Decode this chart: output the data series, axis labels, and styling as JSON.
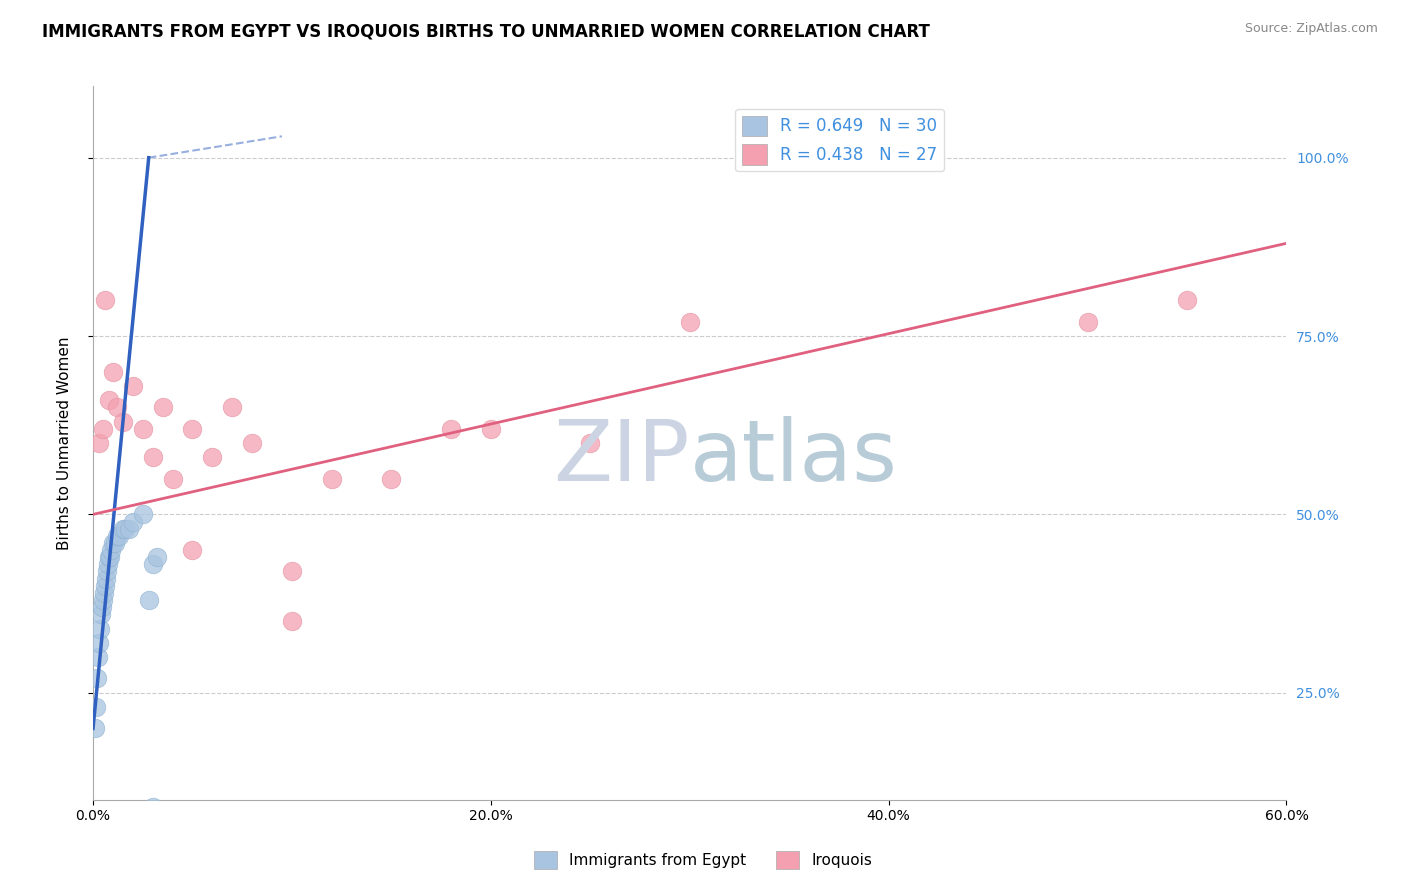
{
  "title": "IMMIGRANTS FROM EGYPT VS IROQUOIS BIRTHS TO UNMARRIED WOMEN CORRELATION CHART",
  "source": "Source: ZipAtlas.com",
  "xlabel_ticks": [
    "0.0%",
    "20.0%",
    "40.0%",
    "60.0%"
  ],
  "xlabel_vals": [
    0.0,
    20.0,
    40.0,
    60.0
  ],
  "ylabel": "Births to Unmarried Women",
  "ylabel_ticks": [
    "25.0%",
    "50.0%",
    "75.0%",
    "100.0%"
  ],
  "ylabel_vals": [
    25.0,
    50.0,
    75.0,
    100.0
  ],
  "xlim": [
    0.0,
    60.0
  ],
  "ylim": [
    10.0,
    110.0
  ],
  "blue_scatter_x": [
    0.1,
    0.15,
    0.2,
    0.25,
    0.3,
    0.35,
    0.4,
    0.45,
    0.5,
    0.55,
    0.6,
    0.65,
    0.7,
    0.75,
    0.8,
    0.85,
    0.9,
    1.0,
    1.1,
    1.2,
    1.3,
    1.5,
    1.6,
    1.8,
    2.0,
    2.5,
    2.8,
    3.0,
    3.2,
    3.0
  ],
  "blue_scatter_y": [
    20.0,
    23.0,
    27.0,
    30.0,
    32.0,
    34.0,
    36.0,
    37.0,
    38.0,
    39.0,
    40.0,
    41.0,
    42.0,
    43.0,
    44.0,
    44.0,
    45.0,
    46.0,
    46.0,
    47.0,
    47.0,
    48.0,
    48.0,
    48.0,
    49.0,
    50.0,
    38.0,
    43.0,
    44.0,
    9.0
  ],
  "pink_scatter_x": [
    0.3,
    0.5,
    0.8,
    1.0,
    1.2,
    1.5,
    2.0,
    2.5,
    3.0,
    3.5,
    4.0,
    5.0,
    5.0,
    6.0,
    7.0,
    8.0,
    10.0,
    10.0,
    12.0,
    15.0,
    18.0,
    20.0,
    25.0,
    30.0,
    50.0,
    55.0,
    0.6
  ],
  "pink_scatter_y": [
    60.0,
    62.0,
    66.0,
    70.0,
    65.0,
    63.0,
    68.0,
    62.0,
    58.0,
    65.0,
    55.0,
    62.0,
    45.0,
    58.0,
    65.0,
    60.0,
    42.0,
    35.0,
    55.0,
    55.0,
    62.0,
    62.0,
    60.0,
    77.0,
    77.0,
    80.0,
    80.0
  ],
  "blue_R": 0.649,
  "blue_N": 30,
  "pink_R": 0.438,
  "pink_N": 27,
  "blue_color": "#a8c4e0",
  "pink_color": "#f4a0b0",
  "blue_line_color": "#3060c0",
  "pink_line_color": "#e06080",
  "blue_line_x1": 0.0,
  "blue_line_y1": 20.0,
  "blue_line_x2": 2.8,
  "blue_line_y2": 100.0,
  "blue_dash_x1": 2.8,
  "blue_dash_y1": 100.0,
  "blue_dash_x2": 9.5,
  "blue_dash_y2": 103.0,
  "pink_line_x1": 0.0,
  "pink_line_y1": 50.0,
  "pink_line_x2": 60.0,
  "pink_line_y2": 88.0,
  "grid_color": "#cccccc",
  "watermark_zip_color": "#ccd4e4",
  "watermark_atlas_color": "#b8ccd8",
  "title_fontsize": 12,
  "legend_fontsize": 12,
  "axis_label_fontsize": 11
}
